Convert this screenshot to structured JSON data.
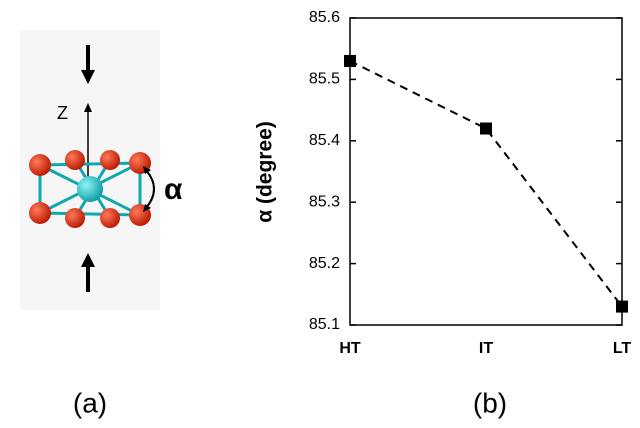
{
  "panel_a": {
    "axis_label": "Z",
    "angle_label": "α",
    "caption": "(a)"
  },
  "chart_data": {
    "type": "line",
    "caption": "(b)",
    "y_label": "α (degree)",
    "categories": [
      "HT",
      "IT",
      "LT"
    ],
    "values": [
      85.53,
      85.42,
      85.13
    ],
    "color": "#000000",
    "line_style": "dashed",
    "marker": "square",
    "ylim": [
      85.1,
      85.6
    ],
    "yticks": [
      85.1,
      85.2,
      85.3,
      85.4,
      85.5,
      85.6
    ],
    "grid": false
  }
}
